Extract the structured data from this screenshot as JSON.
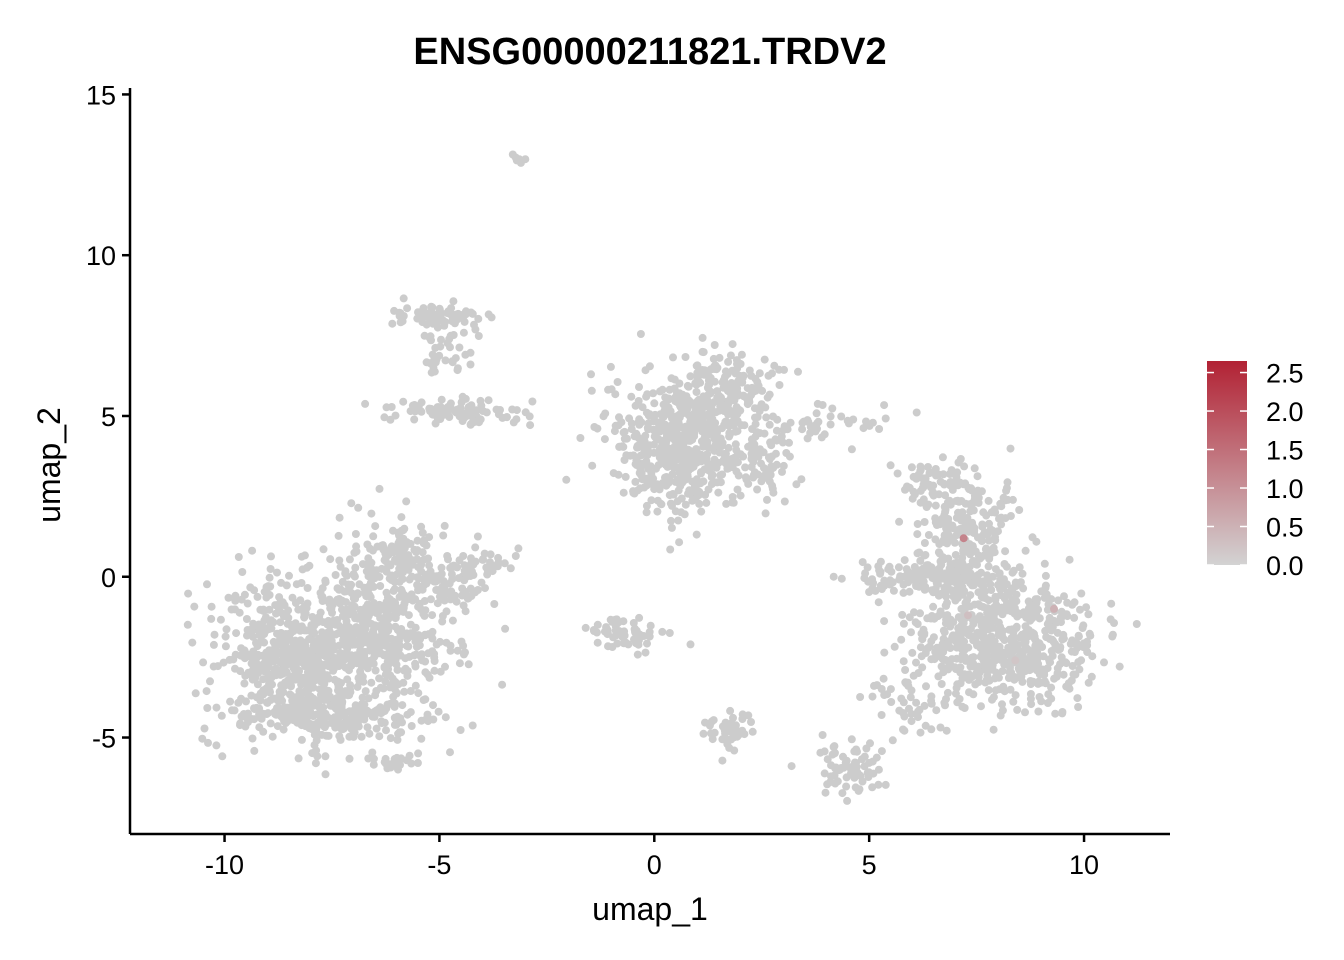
{
  "chart_data": {
    "type": "scatter",
    "title": "ENSG00000211821.TRDV2",
    "xlabel": "umap_1",
    "ylabel": "umap_2",
    "xlim": [
      -12.2,
      12
    ],
    "ylim": [
      -8,
      15.2
    ],
    "x_ticks": [
      -10,
      -5,
      0,
      5,
      10
    ],
    "x_tick_labels": [
      "-10",
      "-5",
      "0",
      "5",
      "10"
    ],
    "y_ticks": [
      -5,
      0,
      5,
      10,
      15
    ],
    "y_tick_labels": [
      "-5",
      "0",
      "5",
      "10",
      "15"
    ],
    "point_color": "#CCCCCC",
    "legend": {
      "position": "right",
      "type": "colorbar",
      "min": 0,
      "max": 2.65,
      "low_color": "#D3D3D3",
      "high_color": "#B22234",
      "ticks": [
        0.0,
        0.5,
        1.0,
        1.5,
        2.0,
        2.5
      ],
      "tick_labels": [
        "0.0",
        "0.5",
        "1.0",
        "1.5",
        "2.0",
        "2.5"
      ]
    },
    "clusters": [
      {
        "name": "",
        "cx": -8.3,
        "cy": -2.6,
        "sx": 1.15,
        "sy": 1.45,
        "n": 700,
        "expr": []
      },
      {
        "name": "",
        "cx": -6.2,
        "cy": -1.5,
        "sx": 1.0,
        "sy": 1.6,
        "n": 420,
        "expr": []
      },
      {
        "name": "",
        "cx": -7.2,
        "cy": -4.4,
        "sx": 1.2,
        "sy": 0.35,
        "n": 160,
        "expr": []
      },
      {
        "name": "",
        "cx": -6.0,
        "cy": 0.8,
        "sx": 0.45,
        "sy": 0.5,
        "n": 70,
        "expr": []
      },
      {
        "name": "",
        "cx": -4.8,
        "cy": -0.2,
        "sx": 0.6,
        "sy": 0.4,
        "n": 60,
        "expr": []
      },
      {
        "name": "",
        "cx": -4.0,
        "cy": 0.4,
        "sx": 0.5,
        "sy": 0.25,
        "n": 30,
        "expr": []
      },
      {
        "name": "",
        "cx": -5.9,
        "cy": -5.8,
        "sx": 0.5,
        "sy": 0.2,
        "n": 25,
        "expr": []
      },
      {
        "name": "",
        "cx": -4.9,
        "cy": 8.1,
        "sx": 0.7,
        "sy": 0.2,
        "n": 70,
        "expr": []
      },
      {
        "name": "",
        "cx": -4.8,
        "cy": 7.2,
        "sx": 0.45,
        "sy": 0.45,
        "n": 40,
        "expr": []
      },
      {
        "name": "",
        "cx": -4.7,
        "cy": 5.1,
        "sx": 0.9,
        "sy": 0.25,
        "n": 100,
        "expr": []
      },
      {
        "name": "",
        "cx": -3.2,
        "cy": 13.0,
        "sx": 0.1,
        "sy": 0.08,
        "n": 6,
        "expr": []
      },
      {
        "name": "",
        "cx": 0.6,
        "cy": 4.0,
        "sx": 0.9,
        "sy": 1.2,
        "n": 520,
        "expr": []
      },
      {
        "name": "",
        "cx": 1.7,
        "cy": 5.6,
        "sx": 0.7,
        "sy": 0.8,
        "n": 200,
        "expr": []
      },
      {
        "name": "",
        "cx": 2.4,
        "cy": 3.5,
        "sx": 0.5,
        "sy": 0.6,
        "n": 70,
        "expr": []
      },
      {
        "name": "",
        "cx": 4.2,
        "cy": 4.8,
        "sx": 0.9,
        "sy": 0.35,
        "n": 40,
        "expr": []
      },
      {
        "name": "",
        "cx": -0.6,
        "cy": -1.8,
        "sx": 0.5,
        "sy": 0.28,
        "n": 60,
        "expr": []
      },
      {
        "name": "",
        "cx": 1.8,
        "cy": -4.8,
        "sx": 0.4,
        "sy": 0.35,
        "n": 45,
        "expr": []
      },
      {
        "name": "",
        "cx": 4.5,
        "cy": -5.9,
        "sx": 0.45,
        "sy": 0.45,
        "n": 70,
        "expr": []
      },
      {
        "name": "",
        "cx": 8.1,
        "cy": -2.0,
        "sx": 1.3,
        "sy": 1.2,
        "n": 650,
        "expr": [
          [
            7.3,
            -1.2,
            0.3
          ],
          [
            9.3,
            -1.0,
            0.5
          ],
          [
            8.4,
            -2.6,
            0.2
          ]
        ]
      },
      {
        "name": "",
        "cx": 6.4,
        "cy": 0.0,
        "sx": 1.0,
        "sy": 0.35,
        "n": 160,
        "expr": []
      },
      {
        "name": "",
        "cx": 7.3,
        "cy": 1.6,
        "sx": 0.7,
        "sy": 0.9,
        "n": 200,
        "expr": [
          [
            7.2,
            1.2,
            1.2
          ]
        ]
      },
      {
        "name": "",
        "cx": 6.6,
        "cy": 3.0,
        "sx": 0.6,
        "sy": 0.35,
        "n": 60,
        "expr": []
      },
      {
        "name": "",
        "cx": 6.0,
        "cy": -4.0,
        "sx": 0.6,
        "sy": 0.5,
        "n": 40,
        "expr": []
      }
    ]
  }
}
